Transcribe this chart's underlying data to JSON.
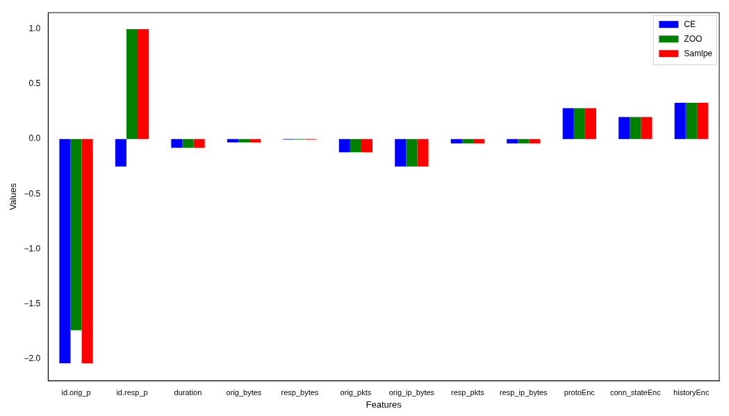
{
  "chart_data": {
    "type": "bar",
    "xlabel": "Features",
    "ylabel": "Values",
    "categories": [
      "id.orig_p",
      "id.resp_p",
      "duration",
      "orig_bytes",
      "resp_bytes",
      "orig_pkts",
      "orig_ip_bytes",
      "resp_pkts",
      "resp_ip_bytes",
      "protoEnc",
      "conn_stateEnc",
      "historyEnc"
    ],
    "series": [
      {
        "name": "CE",
        "color": "#0000ff",
        "values": [
          -2.04,
          -0.25,
          -0.08,
          -0.03,
          -0.005,
          -0.12,
          -0.25,
          -0.04,
          -0.04,
          0.28,
          0.2,
          0.33
        ]
      },
      {
        "name": "ZOO",
        "color": "#008000",
        "values": [
          -1.74,
          1.0,
          -0.08,
          -0.03,
          -0.005,
          -0.12,
          -0.25,
          -0.04,
          -0.04,
          0.28,
          0.2,
          0.33
        ]
      },
      {
        "name": "Samlpe",
        "color": "#ff0000",
        "values": [
          -2.04,
          1.0,
          -0.08,
          -0.03,
          -0.005,
          -0.12,
          -0.25,
          -0.04,
          -0.04,
          0.28,
          0.2,
          0.33
        ]
      }
    ],
    "ylim": [
      -2.2,
      1.15
    ],
    "yticks": [
      {
        "value": -2.0,
        "label": "−2.0"
      },
      {
        "value": -1.5,
        "label": "−1.5"
      },
      {
        "value": -1.0,
        "label": "−1.0"
      },
      {
        "value": -0.5,
        "label": "−0.5"
      },
      {
        "value": 0.0,
        "label": "0.0"
      },
      {
        "value": 0.5,
        "label": "0.5"
      },
      {
        "value": 1.0,
        "label": "1.0"
      }
    ],
    "grid": false,
    "legend": "top right"
  }
}
